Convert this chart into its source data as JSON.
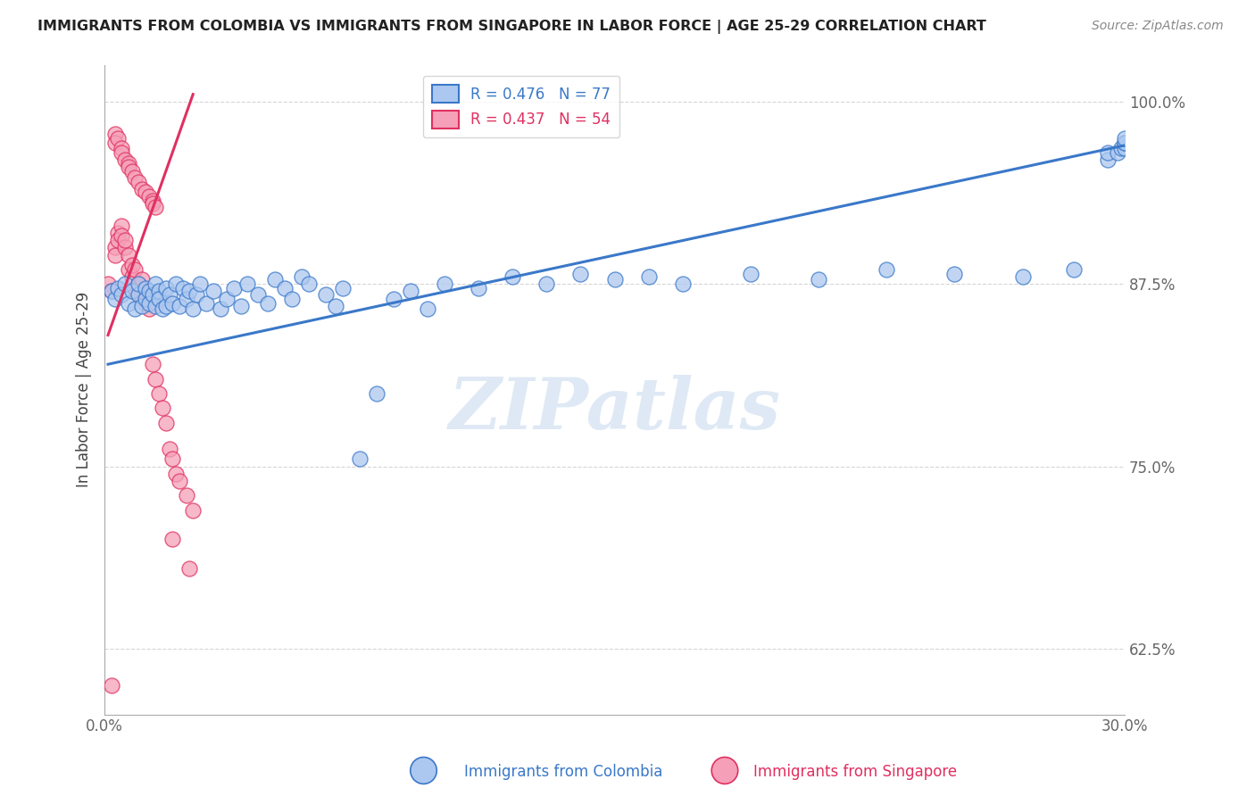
{
  "title": "IMMIGRANTS FROM COLOMBIA VS IMMIGRANTS FROM SINGAPORE IN LABOR FORCE | AGE 25-29 CORRELATION CHART",
  "source": "Source: ZipAtlas.com",
  "ylabel": "In Labor Force | Age 25-29",
  "xlim": [
    0.0,
    0.3
  ],
  "ylim": [
    0.58,
    1.025
  ],
  "xticks": [
    0.0,
    0.05,
    0.1,
    0.15,
    0.2,
    0.25,
    0.3
  ],
  "xtick_labels": [
    "0.0%",
    "",
    "",
    "",
    "",
    "",
    "30.0%"
  ],
  "yticks": [
    0.625,
    0.75,
    0.875,
    1.0
  ],
  "ytick_labels": [
    "62.5%",
    "75.0%",
    "87.5%",
    "100.0%"
  ],
  "colombia_R": 0.476,
  "colombia_N": 77,
  "singapore_R": 0.437,
  "singapore_N": 54,
  "colombia_color": "#adc8f0",
  "singapore_color": "#f5a0b8",
  "colombia_line_color": "#3a78c9",
  "singapore_line_color": "#e03060",
  "colombia_label": "Immigrants from Colombia",
  "singapore_label": "Immigrants from Singapore",
  "watermark": "ZIPatlas",
  "colombia_x": [
    0.002,
    0.003,
    0.004,
    0.005,
    0.006,
    0.007,
    0.008,
    0.009,
    0.01,
    0.01,
    0.011,
    0.012,
    0.012,
    0.013,
    0.013,
    0.014,
    0.015,
    0.015,
    0.016,
    0.016,
    0.017,
    0.018,
    0.018,
    0.019,
    0.02,
    0.021,
    0.022,
    0.023,
    0.024,
    0.025,
    0.026,
    0.027,
    0.028,
    0.03,
    0.032,
    0.034,
    0.036,
    0.038,
    0.04,
    0.042,
    0.045,
    0.048,
    0.05,
    0.053,
    0.055,
    0.058,
    0.06,
    0.065,
    0.068,
    0.07,
    0.075,
    0.08,
    0.085,
    0.09,
    0.095,
    0.1,
    0.11,
    0.12,
    0.13,
    0.14,
    0.15,
    0.16,
    0.17,
    0.19,
    0.21,
    0.23,
    0.25,
    0.27,
    0.285,
    0.295,
    0.295,
    0.298,
    0.299,
    0.3,
    0.3,
    0.3,
    0.3
  ],
  "colombia_y": [
    0.87,
    0.865,
    0.872,
    0.868,
    0.875,
    0.862,
    0.87,
    0.858,
    0.868,
    0.875,
    0.86,
    0.872,
    0.865,
    0.87,
    0.862,
    0.868,
    0.875,
    0.86,
    0.87,
    0.865,
    0.858,
    0.872,
    0.86,
    0.868,
    0.862,
    0.875,
    0.86,
    0.872,
    0.865,
    0.87,
    0.858,
    0.868,
    0.875,
    0.862,
    0.87,
    0.858,
    0.865,
    0.872,
    0.86,
    0.875,
    0.868,
    0.862,
    0.878,
    0.872,
    0.865,
    0.88,
    0.875,
    0.868,
    0.86,
    0.872,
    0.755,
    0.8,
    0.865,
    0.87,
    0.858,
    0.875,
    0.872,
    0.88,
    0.875,
    0.882,
    0.878,
    0.88,
    0.875,
    0.882,
    0.878,
    0.885,
    0.882,
    0.88,
    0.885,
    0.96,
    0.965,
    0.965,
    0.968,
    0.968,
    0.972,
    0.972,
    0.975
  ],
  "singapore_x": [
    0.001,
    0.002,
    0.003,
    0.003,
    0.004,
    0.004,
    0.005,
    0.005,
    0.006,
    0.006,
    0.007,
    0.007,
    0.008,
    0.008,
    0.009,
    0.009,
    0.01,
    0.01,
    0.011,
    0.011,
    0.012,
    0.012,
    0.013,
    0.014,
    0.015,
    0.016,
    0.017,
    0.018,
    0.019,
    0.02,
    0.021,
    0.022,
    0.024,
    0.026,
    0.003,
    0.003,
    0.004,
    0.005,
    0.005,
    0.006,
    0.007,
    0.007,
    0.008,
    0.009,
    0.01,
    0.011,
    0.012,
    0.013,
    0.014,
    0.014,
    0.015,
    0.02,
    0.025,
    0.002
  ],
  "singapore_y": [
    0.875,
    0.87,
    0.9,
    0.895,
    0.91,
    0.905,
    0.915,
    0.908,
    0.9,
    0.905,
    0.895,
    0.885,
    0.88,
    0.888,
    0.885,
    0.872,
    0.875,
    0.868,
    0.878,
    0.87,
    0.868,
    0.862,
    0.858,
    0.82,
    0.81,
    0.8,
    0.79,
    0.78,
    0.762,
    0.755,
    0.745,
    0.74,
    0.73,
    0.72,
    0.978,
    0.972,
    0.975,
    0.968,
    0.965,
    0.96,
    0.958,
    0.955,
    0.952,
    0.948,
    0.945,
    0.94,
    0.938,
    0.935,
    0.932,
    0.93,
    0.928,
    0.7,
    0.68,
    0.6
  ],
  "colombia_line_x": [
    0.001,
    0.3
  ],
  "colombia_line_y": [
    0.82,
    0.97
  ],
  "singapore_line_x": [
    0.001,
    0.026
  ],
  "singapore_line_y": [
    0.84,
    1.005
  ]
}
